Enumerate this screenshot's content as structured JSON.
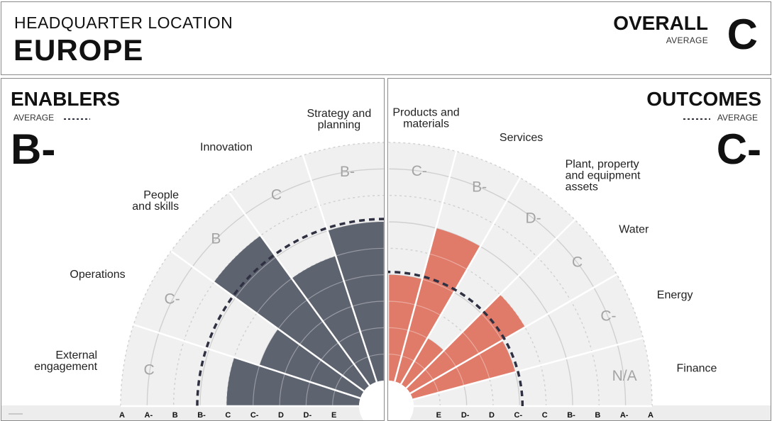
{
  "header": {
    "hq_label": "HEADQUARTER LOCATION",
    "hq_value": "EUROPE",
    "overall_label": "OVERALL",
    "overall_sub": "AVERAGE",
    "overall_grade": "C"
  },
  "colors": {
    "enablers_bar": "#5e6370",
    "outcomes_bar": "#e07b6a",
    "sector_bg": "#f0f0f0",
    "ring": "#d0d0d0",
    "average_line": "#2f3142"
  },
  "chart_data": [
    {
      "type": "polar-bar",
      "title": "ENABLERS",
      "average_label": "AVERAGE",
      "average_grade": "B-",
      "scale": [
        "E",
        "D-",
        "D",
        "C-",
        "C",
        "B-",
        "B",
        "A-",
        "A"
      ],
      "axis_ticks": [
        "A",
        "A-",
        "B",
        "B-",
        "C",
        "C-",
        "D",
        "D-",
        "E"
      ],
      "average_value": "B-",
      "categories": [
        {
          "name": "Strategy and planning",
          "lines": [
            "Strategy and",
            "planning"
          ],
          "grade": "B-"
        },
        {
          "name": "Innovation",
          "lines": [
            "Innovation"
          ],
          "grade": "C"
        },
        {
          "name": "People and skills",
          "lines": [
            "People",
            "and skills"
          ],
          "grade": "B"
        },
        {
          "name": "Operations",
          "lines": [
            "Operations"
          ],
          "grade": "C-"
        },
        {
          "name": "External engagement",
          "lines": [
            "External",
            "engagement"
          ],
          "grade": "C"
        }
      ]
    },
    {
      "type": "polar-bar",
      "title": "OUTCOMES",
      "average_label": "AVERAGE",
      "average_grade": "C-",
      "scale": [
        "E",
        "D-",
        "D",
        "C-",
        "C",
        "B-",
        "B",
        "A-",
        "A"
      ],
      "axis_ticks": [
        "E",
        "D-",
        "D",
        "C-",
        "C",
        "B-",
        "B",
        "A-",
        "A"
      ],
      "average_value": "C-",
      "categories": [
        {
          "name": "Products and materials",
          "lines": [
            "Products and",
            "materials"
          ],
          "grade": "C-"
        },
        {
          "name": "Services",
          "lines": [
            "Services"
          ],
          "grade": "B-"
        },
        {
          "name": "Plant, property and equipment assets",
          "lines": [
            "Plant, property",
            "and equipment",
            "assets"
          ],
          "grade": "D-"
        },
        {
          "name": "Water",
          "lines": [
            "Water"
          ],
          "grade": "C"
        },
        {
          "name": "Energy",
          "lines": [
            "Energy"
          ],
          "grade": "C-"
        },
        {
          "name": "Finance",
          "lines": [
            "Finance"
          ],
          "grade": "N/A"
        }
      ]
    }
  ]
}
